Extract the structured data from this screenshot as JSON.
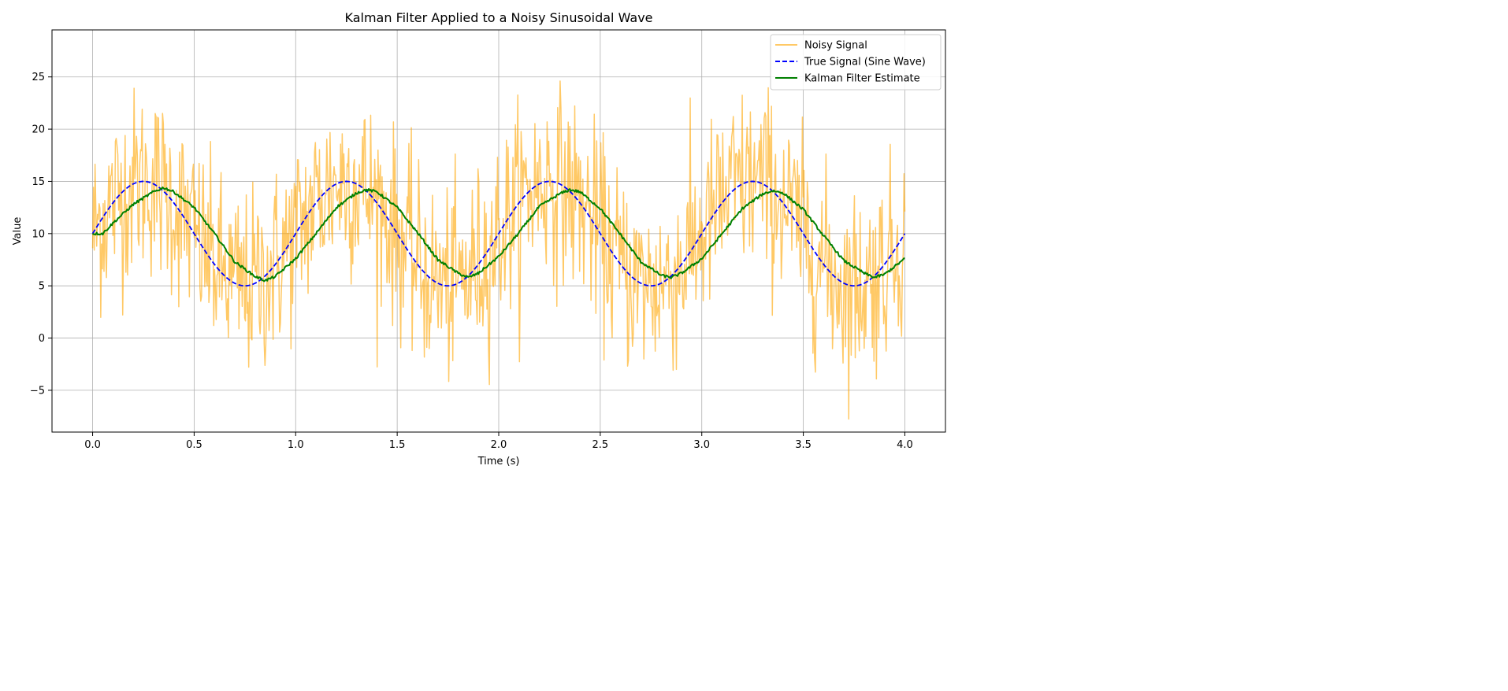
{
  "chart_data": {
    "type": "line",
    "title": "Kalman Filter Applied to a Noisy Sinusoidal Wave",
    "xlabel": "Time (s)",
    "ylabel": "Value",
    "xlim": [
      -0.2,
      4.2
    ],
    "ylim": [
      -9.0,
      29.5
    ],
    "xticks": [
      0.0,
      0.5,
      1.0,
      1.5,
      2.0,
      2.5,
      3.0,
      3.5,
      4.0
    ],
    "xtick_labels": [
      "0.0",
      "0.5",
      "1.0",
      "1.5",
      "2.0",
      "2.5",
      "3.0",
      "3.5",
      "4.0"
    ],
    "yticks": [
      -5,
      0,
      5,
      10,
      15,
      20,
      25
    ],
    "ytick_labels": [
      "−5",
      "0",
      "5",
      "10",
      "15",
      "20",
      "25"
    ],
    "grid": true,
    "legend_position": "top-right",
    "x_range": [
      0.0,
      4.0
    ],
    "series": [
      {
        "name": "Noisy Signal",
        "color": "#FFA500",
        "opacity": 0.6,
        "style": "solid",
        "description": "true signal plus random noise",
        "noise_std": 4.5
      },
      {
        "name": "True Signal (Sine Wave)",
        "color": "#0000FF",
        "style": "dashed",
        "formula": "10 + 5*sin(2*pi*t)",
        "x": [
          0.0,
          0.125,
          0.25,
          0.375,
          0.5,
          0.625,
          0.75,
          0.875,
          1.0,
          1.125,
          1.25,
          1.375,
          1.5,
          1.625,
          1.75,
          1.875,
          2.0,
          2.125,
          2.25,
          2.375,
          2.5,
          2.625,
          2.75,
          2.875,
          3.0,
          3.125,
          3.25,
          3.375,
          3.5,
          3.625,
          3.75,
          3.875,
          4.0
        ],
        "values": [
          10.0,
          13.54,
          15.0,
          13.54,
          10.0,
          6.46,
          5.0,
          6.46,
          10.0,
          13.54,
          15.0,
          13.54,
          10.0,
          6.46,
          5.0,
          6.46,
          10.0,
          13.54,
          15.0,
          13.54,
          10.0,
          6.46,
          5.0,
          6.46,
          10.0,
          13.54,
          15.0,
          13.54,
          10.0,
          6.46,
          5.0,
          6.46,
          10.0
        ]
      },
      {
        "name": "Kalman Filter Estimate",
        "color": "#008000",
        "style": "solid",
        "x": [
          0.0,
          0.05,
          0.1,
          0.2,
          0.3,
          0.35,
          0.4,
          0.5,
          0.6,
          0.7,
          0.8,
          0.85,
          0.9,
          1.0,
          1.1,
          1.2,
          1.3,
          1.35,
          1.4,
          1.5,
          1.6,
          1.7,
          1.8,
          1.85,
          1.9,
          2.0,
          2.1,
          2.2,
          2.3,
          2.35,
          2.4,
          2.5,
          2.6,
          2.7,
          2.8,
          2.85,
          2.9,
          3.0,
          3.1,
          3.2,
          3.3,
          3.35,
          3.4,
          3.5,
          3.6,
          3.7,
          3.8,
          3.85,
          3.9,
          4.0
        ],
        "values": [
          10.0,
          10.0,
          11.0,
          12.8,
          14.0,
          14.4,
          14.0,
          12.5,
          10.0,
          7.3,
          5.9,
          5.5,
          5.9,
          7.6,
          10.0,
          12.5,
          13.9,
          14.2,
          14.0,
          12.5,
          10.1,
          7.5,
          6.2,
          5.8,
          6.2,
          7.8,
          10.1,
          12.6,
          13.8,
          14.2,
          14.0,
          12.4,
          9.9,
          7.3,
          6.0,
          5.8,
          6.2,
          7.6,
          10.0,
          12.4,
          13.8,
          14.1,
          13.9,
          12.3,
          9.8,
          7.4,
          6.2,
          5.8,
          6.1,
          7.6
        ]
      }
    ]
  }
}
